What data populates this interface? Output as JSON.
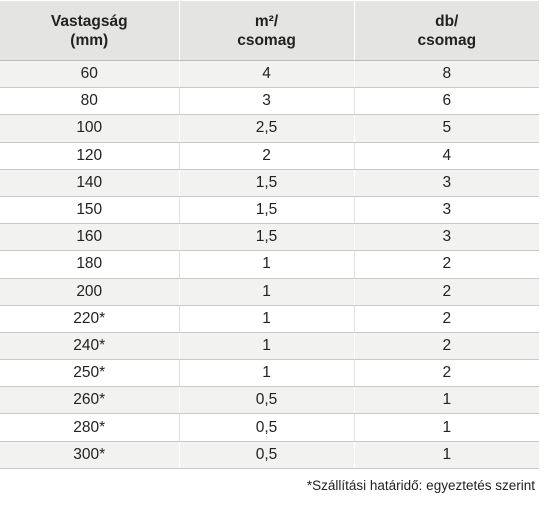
{
  "table": {
    "headers": [
      {
        "line1": "Vastagság",
        "line2": "(mm)"
      },
      {
        "line1": "m²/",
        "line2": "csomag"
      },
      {
        "line1": "db/",
        "line2": "csomag"
      }
    ],
    "rows": [
      [
        "60",
        "4",
        "8"
      ],
      [
        "80",
        "3",
        "6"
      ],
      [
        "100",
        "2,5",
        "5"
      ],
      [
        "120",
        "2",
        "4"
      ],
      [
        "140",
        "1,5",
        "3"
      ],
      [
        "150",
        "1,5",
        "3"
      ],
      [
        "160",
        "1,5",
        "3"
      ],
      [
        "180",
        "1",
        "2"
      ],
      [
        "200",
        "1",
        "2"
      ],
      [
        "220*",
        "1",
        "2"
      ],
      [
        "240*",
        "1",
        "2"
      ],
      [
        "250*",
        "1",
        "2"
      ],
      [
        "260*",
        "0,5",
        "1"
      ],
      [
        "280*",
        "0,5",
        "1"
      ],
      [
        "300*",
        "0,5",
        "1"
      ]
    ]
  },
  "footnote": "*Szállítási határidő: egyeztetés szerint"
}
